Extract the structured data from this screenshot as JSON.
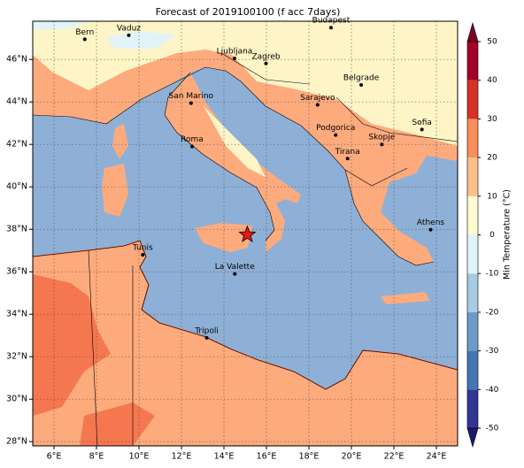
{
  "chart_data": {
    "type": "map",
    "title": "Forecast of 2019100100 (f acc 7days)",
    "xlim": [
      5,
      25
    ],
    "ylim": [
      27.8,
      47.8
    ],
    "xticks": [
      {
        "value": 6,
        "label": "6°E"
      },
      {
        "value": 8,
        "label": "8°E"
      },
      {
        "value": 10,
        "label": "10°E"
      },
      {
        "value": 12,
        "label": "12°E"
      },
      {
        "value": 14,
        "label": "14°E"
      },
      {
        "value": 16,
        "label": "16°E"
      },
      {
        "value": 18,
        "label": "18°E"
      },
      {
        "value": 20,
        "label": "20°E"
      },
      {
        "value": 22,
        "label": "22°E"
      },
      {
        "value": 24,
        "label": "24°E"
      }
    ],
    "yticks": [
      {
        "value": 28,
        "label": "28°N"
      },
      {
        "value": 30,
        "label": "30°N"
      },
      {
        "value": 32,
        "label": "32°N"
      },
      {
        "value": 34,
        "label": "34°N"
      },
      {
        "value": 36,
        "label": "36°N"
      },
      {
        "value": 38,
        "label": "38°N"
      },
      {
        "value": 40,
        "label": "40°N"
      },
      {
        "value": 42,
        "label": "42°N"
      },
      {
        "value": 44,
        "label": "44°N"
      },
      {
        "value": 46,
        "label": "46°N"
      }
    ],
    "grid": true,
    "cities": [
      {
        "label": "Bern",
        "lon": 7.45,
        "lat": 46.95
      },
      {
        "label": "Vaduz",
        "lon": 9.52,
        "lat": 47.14
      },
      {
        "label": "Budapest",
        "lon": 19.04,
        "lat": 47.5
      },
      {
        "label": "Ljubljana",
        "lon": 14.5,
        "lat": 46.05
      },
      {
        "label": "Zagreb",
        "lon": 15.98,
        "lat": 45.81
      },
      {
        "label": "Belgrade",
        "lon": 20.46,
        "lat": 44.8
      },
      {
        "label": "San Marino",
        "lon": 12.45,
        "lat": 43.94
      },
      {
        "label": "Sarajevo",
        "lon": 18.41,
        "lat": 43.86
      },
      {
        "label": "Sofia",
        "lon": 23.32,
        "lat": 42.7
      },
      {
        "label": "Roma",
        "lon": 12.5,
        "lat": 41.9
      },
      {
        "label": "Podgorica",
        "lon": 19.26,
        "lat": 42.44
      },
      {
        "label": "Skopje",
        "lon": 21.43,
        "lat": 42.0
      },
      {
        "label": "Tirana",
        "lon": 19.82,
        "lat": 41.33
      },
      {
        "label": "Athens",
        "lon": 23.73,
        "lat": 37.98
      },
      {
        "label": "Tunis",
        "lon": 10.18,
        "lat": 36.8
      },
      {
        "label": "La Valette",
        "lon": 14.51,
        "lat": 35.9
      },
      {
        "label": "Tripoli",
        "lon": 13.19,
        "lat": 32.89
      }
    ],
    "marker": {
      "lon": 15.1,
      "lat": 37.75,
      "color": "#e41a1c"
    },
    "colorbar": {
      "label": "Min Temperature (°C)",
      "lim": [
        -50,
        50
      ],
      "ticks": [
        -50,
        -40,
        -30,
        -20,
        -10,
        0,
        10,
        20,
        30,
        40,
        50
      ],
      "levels": [
        -50,
        -40,
        -30,
        -20,
        -10,
        0,
        10,
        20,
        30,
        40,
        50
      ],
      "colors": [
        "#313695",
        "#4575b4",
        "#6c9bc8",
        "#a6cbe2",
        "#e0f3f8",
        "#fffad0",
        "#fdbf8a",
        "#f98d5b",
        "#d73027",
        "#a50026"
      ],
      "under_color": "#1a1a6e",
      "over_color": "#800026"
    }
  }
}
